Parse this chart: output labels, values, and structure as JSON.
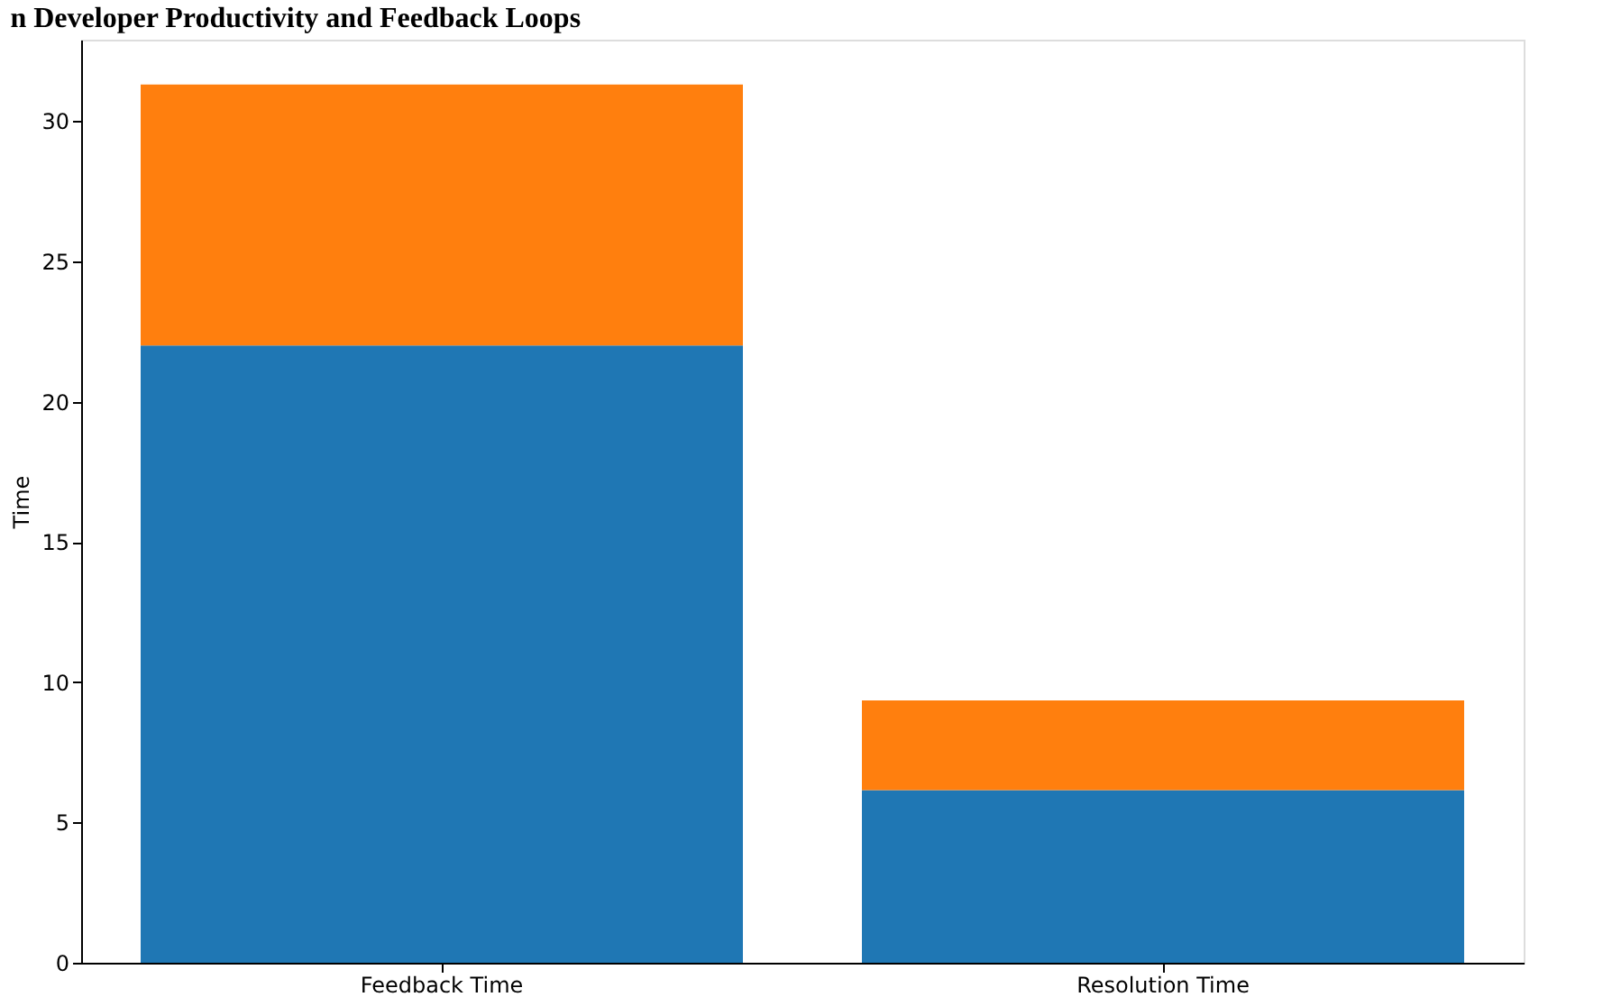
{
  "chart_data": {
    "type": "bar",
    "title": "n Developer Productivity and Feedback Loops",
    "ylabel": "Time",
    "categories": [
      "Feedback Time",
      "Resolution Time"
    ],
    "stacked": true,
    "series": [
      {
        "color": "#1f77b4",
        "values": [
          22,
          6.15
        ]
      },
      {
        "color": "#ff7f0e",
        "values": [
          9.3,
          3.2
        ]
      }
    ],
    "ylim": [
      0,
      32.9
    ],
    "yticks": [
      0,
      5,
      10,
      15,
      20,
      25,
      30
    ],
    "grid": false
  }
}
